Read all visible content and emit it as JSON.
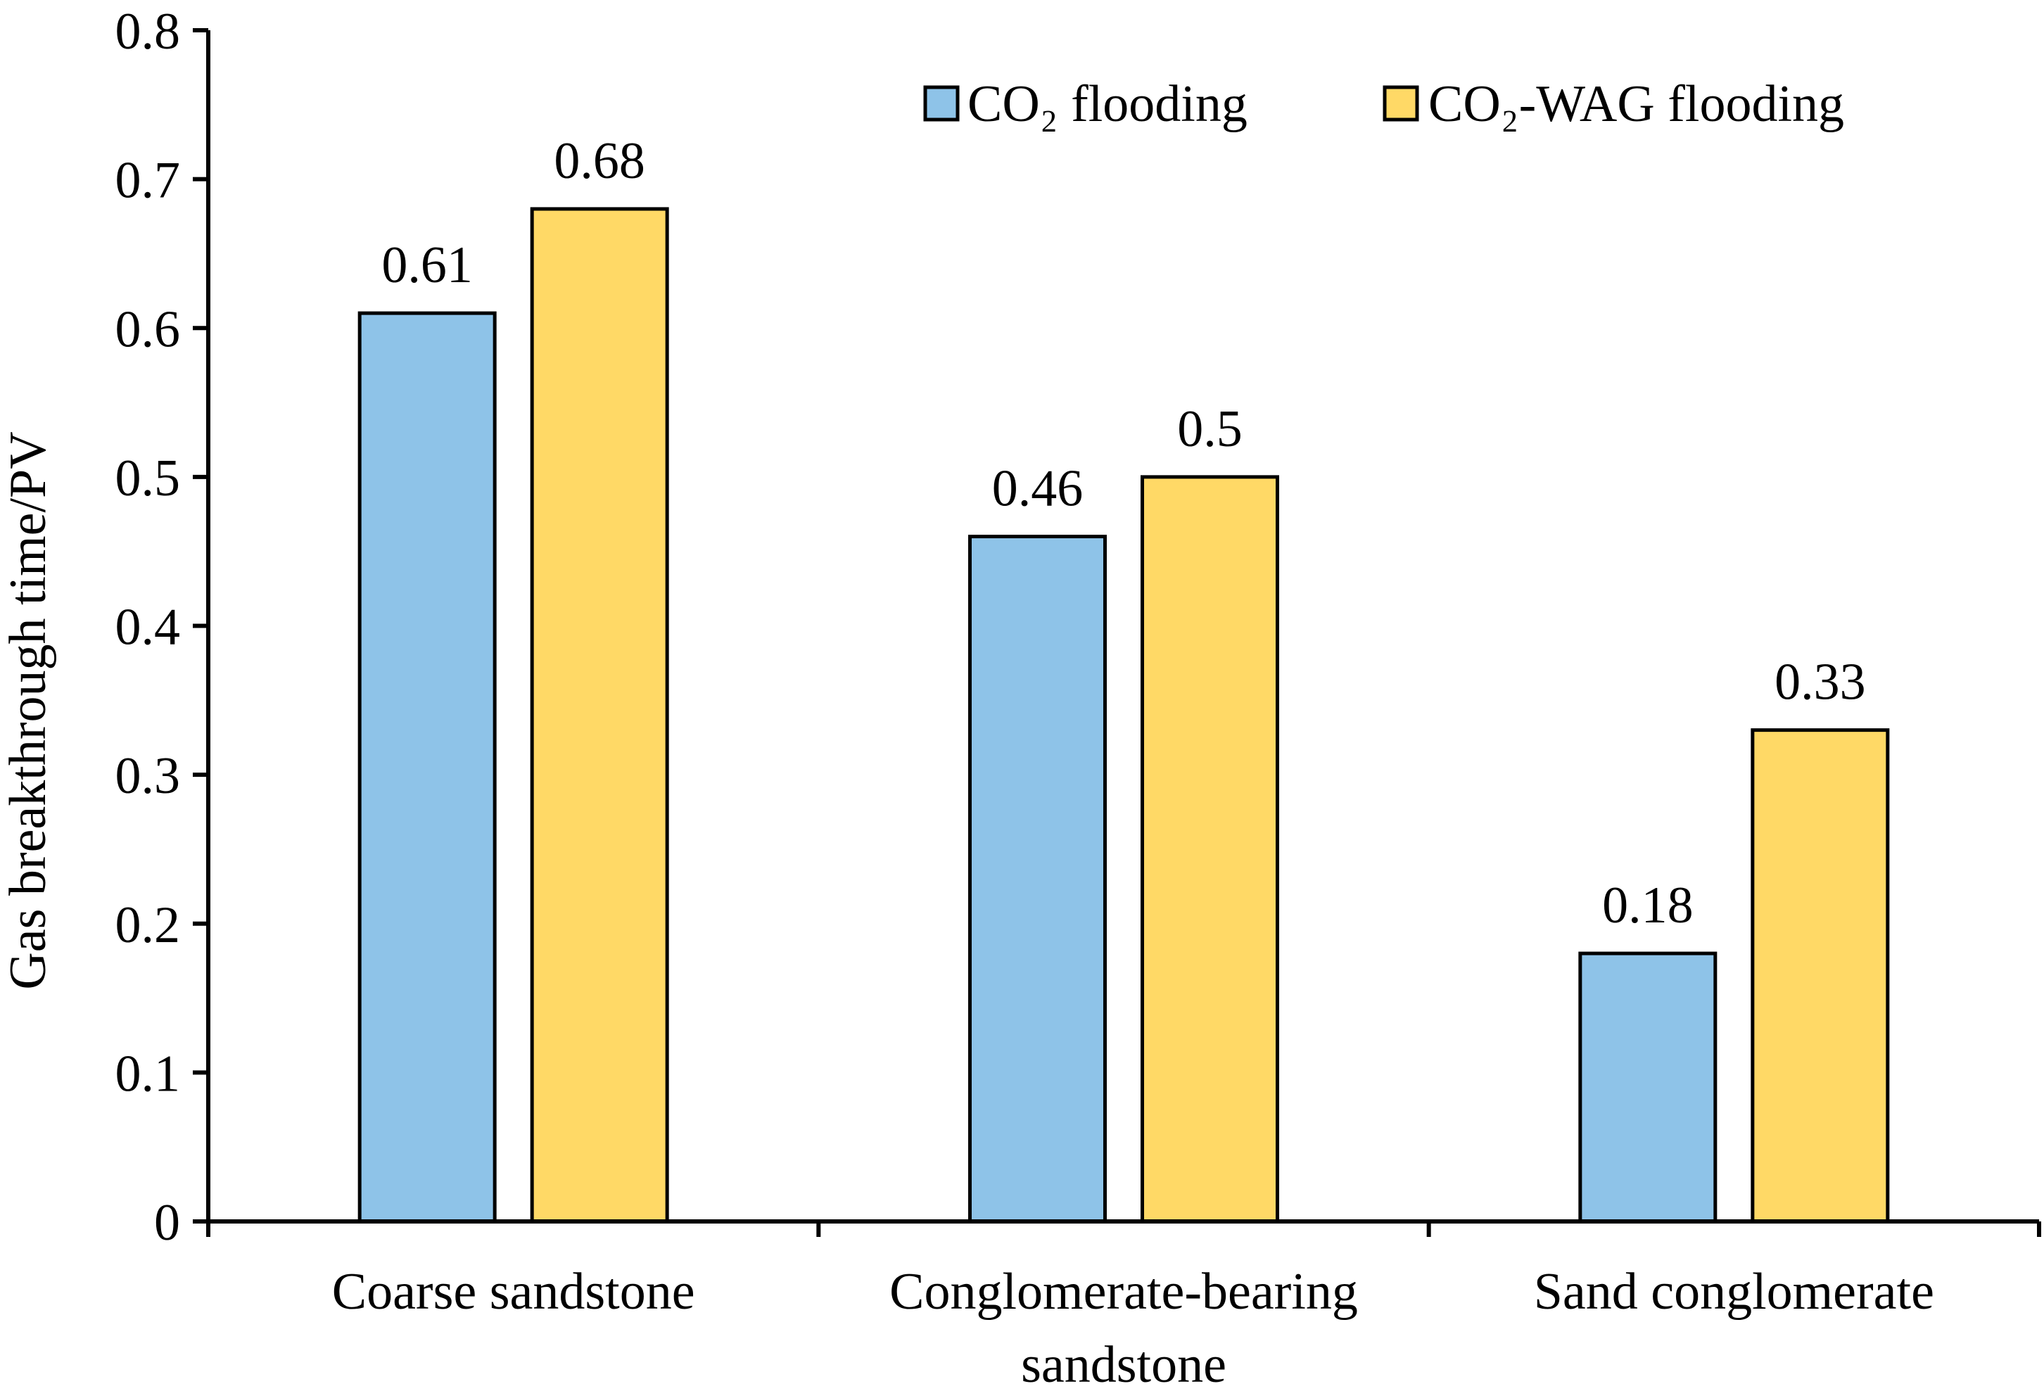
{
  "chart_data": {
    "type": "bar",
    "title": "",
    "xlabel": "",
    "ylabel": "Gas breakthrough time/PV",
    "ylim": [
      0,
      0.8
    ],
    "yticks": [
      "0",
      "0.1",
      "0.2",
      "0.3",
      "0.4",
      "0.5",
      "0.6",
      "0.7",
      "0.8"
    ],
    "categories": [
      [
        "Coarse sandstone"
      ],
      [
        "Conglomerate-bearing",
        "sandstone"
      ],
      [
        "Sand conglomerate"
      ]
    ],
    "series": [
      {
        "name": "CO₂ flooding",
        "color": "#8EC3E8",
        "values": [
          0.61,
          0.46,
          0.18
        ],
        "labels": [
          "0.61",
          "0.46",
          "0.18"
        ]
      },
      {
        "name": "CO₂-WAG flooding",
        "color": "#FFD966",
        "values": [
          0.68,
          0.5,
          0.33
        ],
        "labels": [
          "0.68",
          "0.5",
          "0.33"
        ]
      }
    ],
    "legend": "top-right",
    "grid": false
  }
}
